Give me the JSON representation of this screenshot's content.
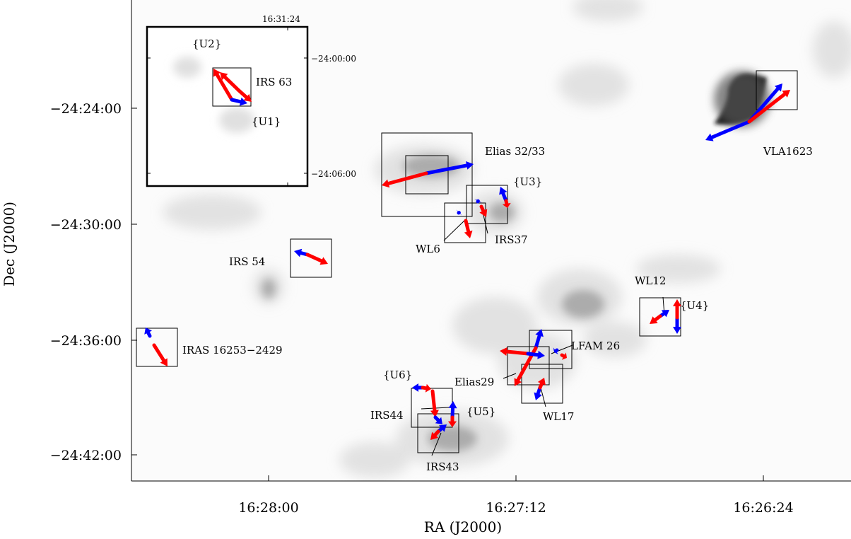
{
  "chart_data": {
    "type": "map",
    "xlabel": "RA (J2000)",
    "ylabel": "Dec (J2000)",
    "x_ticks": [
      "16:28:00",
      "16:27:12",
      "16:26:24"
    ],
    "y_ticks": [
      "−24:24:00",
      "−24:30:00",
      "−24:36:00",
      "−24:42:00"
    ],
    "inset": {
      "x_ticks": [
        "16:31:24"
      ],
      "y_ticks": [
        "−24:00:00",
        "−24:06:00"
      ],
      "labels": [
        "{U2}",
        "IRS 63",
        "{U1}"
      ]
    },
    "sources": [
      "Elias 32/33",
      "{U3}",
      "IRS37",
      "WL6",
      "VLA1623",
      "IRS 54",
      "WL12",
      "{U4}",
      "IRAS 16253−2429",
      "LFAM 26",
      "Elias29",
      "WL17",
      "{U6}",
      "{U5}",
      "IRS44",
      "IRS43"
    ],
    "colors": {
      "blue_lobe": "#0000ff",
      "red_lobe": "#ff0000",
      "frame": "#000000"
    }
  }
}
